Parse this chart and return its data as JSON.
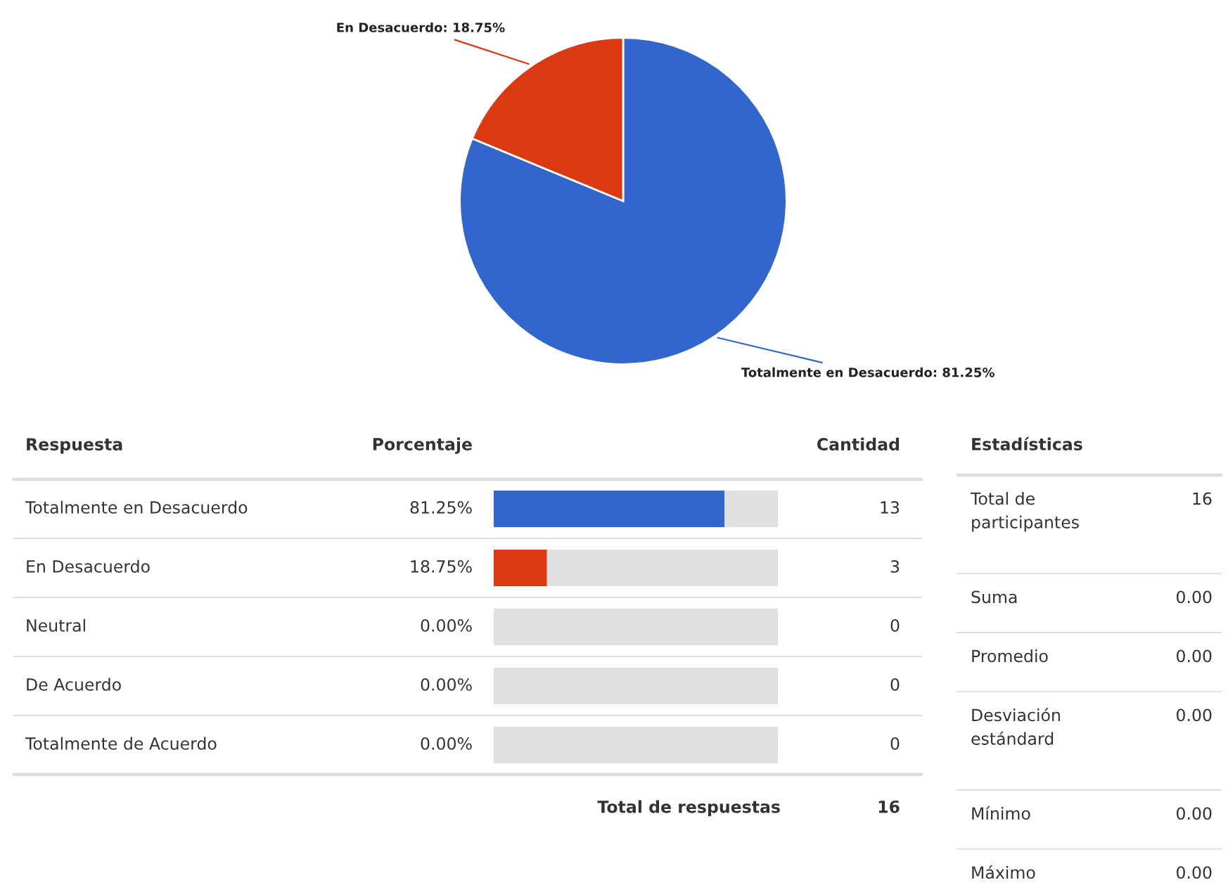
{
  "chart_data": [
    {
      "type": "pie",
      "categories": [
        "Totalmente en Desacuerdo: 81.25%",
        "En Desacuerdo: 18.75%"
      ],
      "values": [
        81.25,
        18.75
      ],
      "colors": [
        "#3366cc",
        "#dc3912"
      ]
    },
    {
      "type": "bar",
      "orientation": "horizontal",
      "stacked": true,
      "categories": [
        "Totalmente en Desacuerdo",
        "En Desacuerdo",
        "Neutral",
        "De Acuerdo",
        "Totalmente de Acuerdo"
      ],
      "series": [
        {
          "colors": [
            "#3366cc",
            "#dc3912",
            "#3366cc",
            "#3366cc",
            "#3366cc"
          ],
          "values": [
            81.25,
            18.75,
            0,
            0,
            0
          ],
          "value_labels": [
            "81.25%",
            "18.75%",
            "0.00%",
            "0.00%",
            "0.00%"
          ]
        },
        {
          "color": "#e0e0e0",
          "values": [
            18.75,
            81.25,
            100,
            100,
            100
          ]
        }
      ],
      "annotations": [
        "Respuesta",
        "Porcentaje",
        "Cantidad",
        "13",
        "3",
        "0",
        "0",
        "0",
        "Total de respuestas",
        "16"
      ]
    },
    {
      "type": "other",
      "title": "Estadísticas",
      "annotations": [
        "Total de\nparticipantes",
        "16",
        "Suma",
        "0.00",
        "Promedio",
        "0.00",
        "Desviación\nestándard",
        "0.00",
        "Mínimo",
        "0.00",
        "Máximo",
        "0.00"
      ]
    }
  ]
}
